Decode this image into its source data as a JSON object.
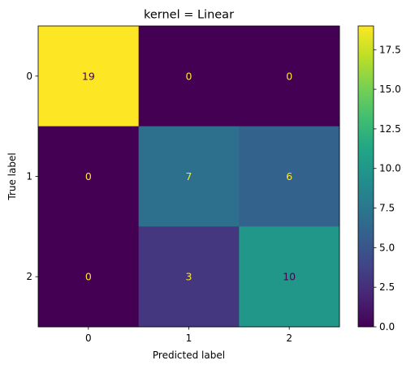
{
  "chart_data": {
    "type": "heatmap",
    "title": "kernel = Linear",
    "xlabel": "Predicted label",
    "ylabel": "True label",
    "x_categories": [
      "0",
      "1",
      "2"
    ],
    "y_categories": [
      "0",
      "1",
      "2"
    ],
    "values": [
      [
        19,
        0,
        0
      ],
      [
        0,
        7,
        6
      ],
      [
        0,
        3,
        10
      ]
    ],
    "colormap": "viridis",
    "color_range": [
      0,
      19
    ],
    "colorbar_ticks": [
      "0.0",
      "2.5",
      "5.0",
      "7.5",
      "10.0",
      "12.5",
      "15.0",
      "17.5"
    ],
    "colorbar_tick_values": [
      0,
      2.5,
      5,
      7.5,
      10,
      12.5,
      15,
      17.5
    ],
    "label_colors": {
      "on_dark": "#fde725",
      "on_light": "#440154"
    }
  }
}
